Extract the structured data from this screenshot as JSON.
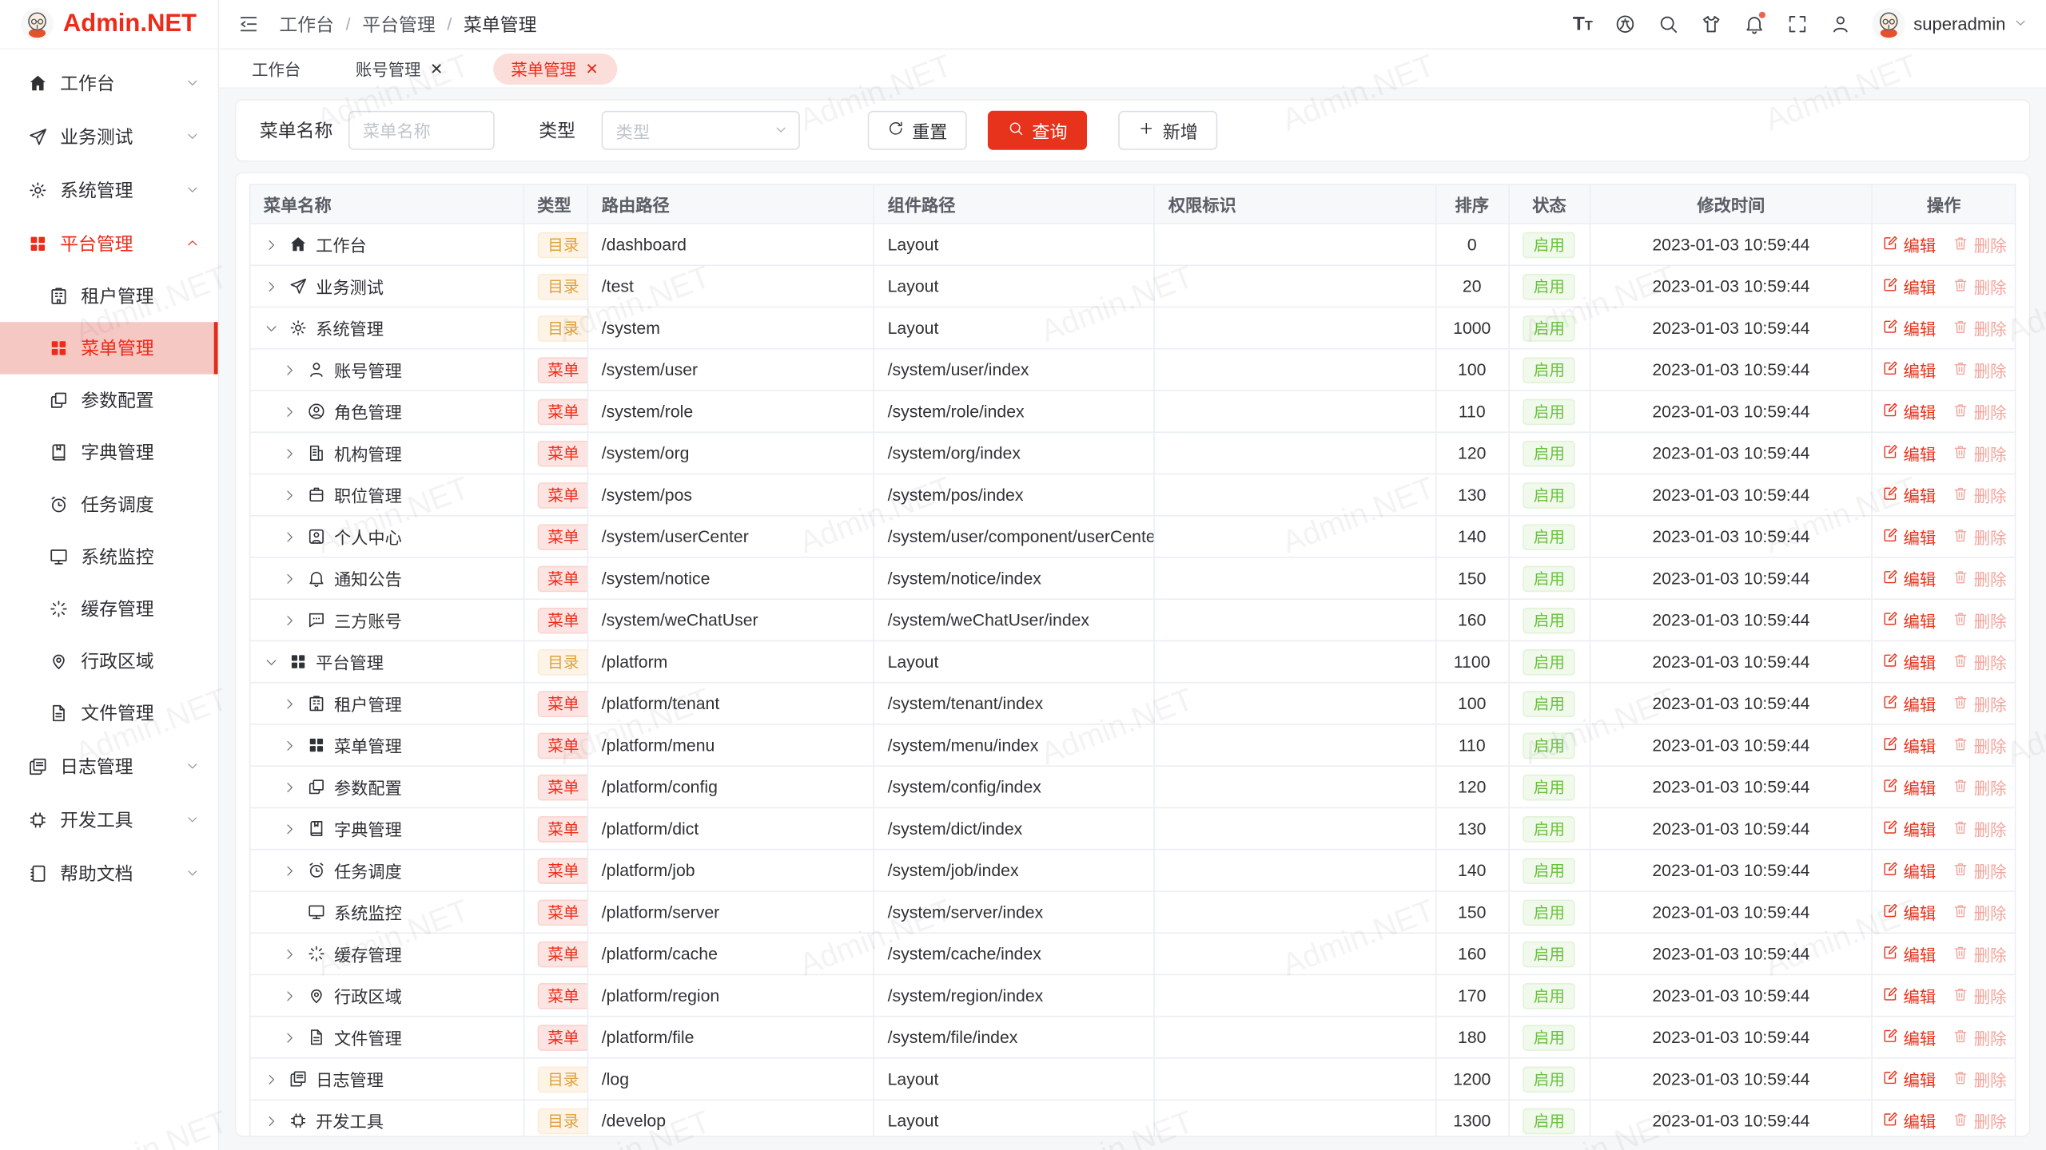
{
  "brand": {
    "name": "Admin.NET",
    "watermark": "Admin.NET"
  },
  "sidebar": {
    "items": [
      {
        "key": "workbench",
        "label": "工作台",
        "icon": "home",
        "chevron": "down"
      },
      {
        "key": "business-test",
        "label": "业务测试",
        "icon": "send",
        "chevron": "down"
      },
      {
        "key": "system",
        "label": "系统管理",
        "icon": "gear",
        "chevron": "down"
      },
      {
        "key": "platform",
        "label": "平台管理",
        "icon": "grid",
        "chevron": "up",
        "active": true,
        "children": [
          {
            "key": "tenant",
            "label": "租户管理",
            "icon": "building"
          },
          {
            "key": "menu",
            "label": "菜单管理",
            "icon": "grid",
            "selected": true
          },
          {
            "key": "config",
            "label": "参数配置",
            "icon": "copy"
          },
          {
            "key": "dict",
            "label": "字典管理",
            "icon": "book"
          },
          {
            "key": "job",
            "label": "任务调度",
            "icon": "alarm"
          },
          {
            "key": "monitor",
            "label": "系统监控",
            "icon": "monitor"
          },
          {
            "key": "cache",
            "label": "缓存管理",
            "icon": "spinner"
          },
          {
            "key": "region",
            "label": "行政区域",
            "icon": "pin"
          },
          {
            "key": "file",
            "label": "文件管理",
            "icon": "file"
          }
        ]
      },
      {
        "key": "log",
        "label": "日志管理",
        "icon": "docs",
        "chevron": "down"
      },
      {
        "key": "devtools",
        "label": "开发工具",
        "icon": "chip",
        "chevron": "down"
      },
      {
        "key": "help-docs",
        "label": "帮助文档",
        "icon": "notebook",
        "chevron": "down"
      }
    ]
  },
  "header": {
    "breadcrumb": [
      "工作台",
      "平台管理",
      "菜单管理"
    ],
    "icons": [
      {
        "key": "font-size"
      },
      {
        "key": "language"
      },
      {
        "key": "search"
      },
      {
        "key": "theme"
      },
      {
        "key": "notification",
        "badge": true
      },
      {
        "key": "fullscreen"
      },
      {
        "key": "profile"
      }
    ],
    "user": "superadmin"
  },
  "tabs": [
    {
      "key": "workbench",
      "label": "工作台",
      "closable": false,
      "active": false
    },
    {
      "key": "account",
      "label": "账号管理",
      "closable": true,
      "active": false
    },
    {
      "key": "menu",
      "label": "菜单管理",
      "closable": true,
      "active": true
    }
  ],
  "filters": {
    "name_label": "菜单名称",
    "name_placeholder": "菜单名称",
    "name_value": "",
    "type_label": "类型",
    "type_placeholder": "类型",
    "reset_label": "重置",
    "search_label": "查询",
    "add_label": "新增"
  },
  "table": {
    "columns": [
      {
        "key": "name",
        "label": "菜单名称",
        "align": "left"
      },
      {
        "key": "type",
        "label": "类型",
        "align": "left"
      },
      {
        "key": "route",
        "label": "路由路径",
        "align": "left"
      },
      {
        "key": "component",
        "label": "组件路径",
        "align": "left"
      },
      {
        "key": "perm",
        "label": "权限标识",
        "align": "left"
      },
      {
        "key": "sort",
        "label": "排序",
        "align": "center"
      },
      {
        "key": "status",
        "label": "状态",
        "align": "center"
      },
      {
        "key": "time",
        "label": "修改时间",
        "align": "center"
      },
      {
        "key": "ops",
        "label": "操作",
        "align": "center"
      }
    ],
    "badge_dir": "目录",
    "badge_menu": "菜单",
    "status_enabled": "启用",
    "edit_label": "编辑",
    "delete_label": "删除",
    "rows": [
      {
        "key": "workbench",
        "name": "工作台",
        "icon": "home",
        "level": 0,
        "expand": "closed",
        "type": "dir",
        "route": "/dashboard",
        "component": "Layout",
        "perm": "",
        "sort": "0",
        "status": "启用",
        "time": "2023-01-03 10:59:44"
      },
      {
        "key": "business-test",
        "name": "业务测试",
        "icon": "send",
        "level": 0,
        "expand": "closed",
        "type": "dir",
        "route": "/test",
        "component": "Layout",
        "perm": "",
        "sort": "20",
        "status": "启用",
        "time": "2023-01-03 10:59:44"
      },
      {
        "key": "system",
        "name": "系统管理",
        "icon": "gear",
        "level": 0,
        "expand": "open",
        "type": "dir",
        "route": "/system",
        "component": "Layout",
        "perm": "",
        "sort": "1000",
        "status": "启用",
        "time": "2023-01-03 10:59:44"
      },
      {
        "key": "account",
        "name": "账号管理",
        "icon": "user",
        "level": 1,
        "expand": "closed",
        "type": "menu",
        "route": "/system/user",
        "component": "/system/user/index",
        "perm": "",
        "sort": "100",
        "status": "启用",
        "time": "2023-01-03 10:59:44"
      },
      {
        "key": "role",
        "name": "角色管理",
        "icon": "user-circle",
        "level": 1,
        "expand": "closed",
        "type": "menu",
        "route": "/system/role",
        "component": "/system/role/index",
        "perm": "",
        "sort": "110",
        "status": "启用",
        "time": "2023-01-03 10:59:44"
      },
      {
        "key": "org",
        "name": "机构管理",
        "icon": "org",
        "level": 1,
        "expand": "closed",
        "type": "menu",
        "route": "/system/org",
        "component": "/system/org/index",
        "perm": "",
        "sort": "120",
        "status": "启用",
        "time": "2023-01-03 10:59:44"
      },
      {
        "key": "pos",
        "name": "职位管理",
        "icon": "badge",
        "level": 1,
        "expand": "closed",
        "type": "menu",
        "route": "/system/pos",
        "component": "/system/pos/index",
        "perm": "",
        "sort": "130",
        "status": "启用",
        "time": "2023-01-03 10:59:44"
      },
      {
        "key": "user-center",
        "name": "个人中心",
        "icon": "user-center",
        "level": 1,
        "expand": "closed",
        "type": "menu",
        "route": "/system/userCenter",
        "component": "/system/user/component/userCenter",
        "perm": "",
        "sort": "140",
        "status": "启用",
        "time": "2023-01-03 10:59:44"
      },
      {
        "key": "notice",
        "name": "通知公告",
        "icon": "bell",
        "level": 1,
        "expand": "closed",
        "type": "menu",
        "route": "/system/notice",
        "component": "/system/notice/index",
        "perm": "",
        "sort": "150",
        "status": "启用",
        "time": "2023-01-03 10:59:44"
      },
      {
        "key": "wechat-user",
        "name": "三方账号",
        "icon": "chat",
        "level": 1,
        "expand": "closed",
        "type": "menu",
        "route": "/system/weChatUser",
        "component": "/system/weChatUser/index",
        "perm": "",
        "sort": "160",
        "status": "启用",
        "time": "2023-01-03 10:59:44"
      },
      {
        "key": "platform",
        "name": "平台管理",
        "icon": "grid",
        "level": 0,
        "expand": "open",
        "type": "dir",
        "route": "/platform",
        "component": "Layout",
        "perm": "",
        "sort": "1100",
        "status": "启用",
        "time": "2023-01-03 10:59:44"
      },
      {
        "key": "tenant",
        "name": "租户管理",
        "icon": "building",
        "level": 1,
        "expand": "closed",
        "type": "menu",
        "route": "/platform/tenant",
        "component": "/system/tenant/index",
        "perm": "",
        "sort": "100",
        "status": "启用",
        "time": "2023-01-03 10:59:44"
      },
      {
        "key": "menu",
        "name": "菜单管理",
        "icon": "grid",
        "level": 1,
        "expand": "closed",
        "type": "menu",
        "route": "/platform/menu",
        "component": "/system/menu/index",
        "perm": "",
        "sort": "110",
        "status": "启用",
        "time": "2023-01-03 10:59:44"
      },
      {
        "key": "config",
        "name": "参数配置",
        "icon": "copy",
        "level": 1,
        "expand": "closed",
        "type": "menu",
        "route": "/platform/config",
        "component": "/system/config/index",
        "perm": "",
        "sort": "120",
        "status": "启用",
        "time": "2023-01-03 10:59:44"
      },
      {
        "key": "dict",
        "name": "字典管理",
        "icon": "book",
        "level": 1,
        "expand": "closed",
        "type": "menu",
        "route": "/platform/dict",
        "component": "/system/dict/index",
        "perm": "",
        "sort": "130",
        "status": "启用",
        "time": "2023-01-03 10:59:44"
      },
      {
        "key": "job",
        "name": "任务调度",
        "icon": "alarm",
        "level": 1,
        "expand": "closed",
        "type": "menu",
        "route": "/platform/job",
        "component": "/system/job/index",
        "perm": "",
        "sort": "140",
        "status": "启用",
        "time": "2023-01-03 10:59:44"
      },
      {
        "key": "monitor",
        "name": "系统监控",
        "icon": "monitor",
        "level": 1,
        "expand": "none",
        "type": "menu",
        "route": "/platform/server",
        "component": "/system/server/index",
        "perm": "",
        "sort": "150",
        "status": "启用",
        "time": "2023-01-03 10:59:44"
      },
      {
        "key": "cache",
        "name": "缓存管理",
        "icon": "spinner",
        "level": 1,
        "expand": "closed",
        "type": "menu",
        "route": "/platform/cache",
        "component": "/system/cache/index",
        "perm": "",
        "sort": "160",
        "status": "启用",
        "time": "2023-01-03 10:59:44"
      },
      {
        "key": "region",
        "name": "行政区域",
        "icon": "pin",
        "level": 1,
        "expand": "closed",
        "type": "menu",
        "route": "/platform/region",
        "component": "/system/region/index",
        "perm": "",
        "sort": "170",
        "status": "启用",
        "time": "2023-01-03 10:59:44"
      },
      {
        "key": "file",
        "name": "文件管理",
        "icon": "file",
        "level": 1,
        "expand": "closed",
        "type": "menu",
        "route": "/platform/file",
        "component": "/system/file/index",
        "perm": "",
        "sort": "180",
        "status": "启用",
        "time": "2023-01-03 10:59:44"
      },
      {
        "key": "log",
        "name": "日志管理",
        "icon": "docs",
        "level": 0,
        "expand": "closed",
        "type": "dir",
        "route": "/log",
        "component": "Layout",
        "perm": "",
        "sort": "1200",
        "status": "启用",
        "time": "2023-01-03 10:59:44"
      },
      {
        "key": "devtools",
        "name": "开发工具",
        "icon": "chip",
        "level": 0,
        "expand": "closed",
        "type": "dir",
        "route": "/develop",
        "component": "Layout",
        "perm": "",
        "sort": "1300",
        "status": "启用",
        "time": "2023-01-03 10:59:44"
      }
    ]
  }
}
